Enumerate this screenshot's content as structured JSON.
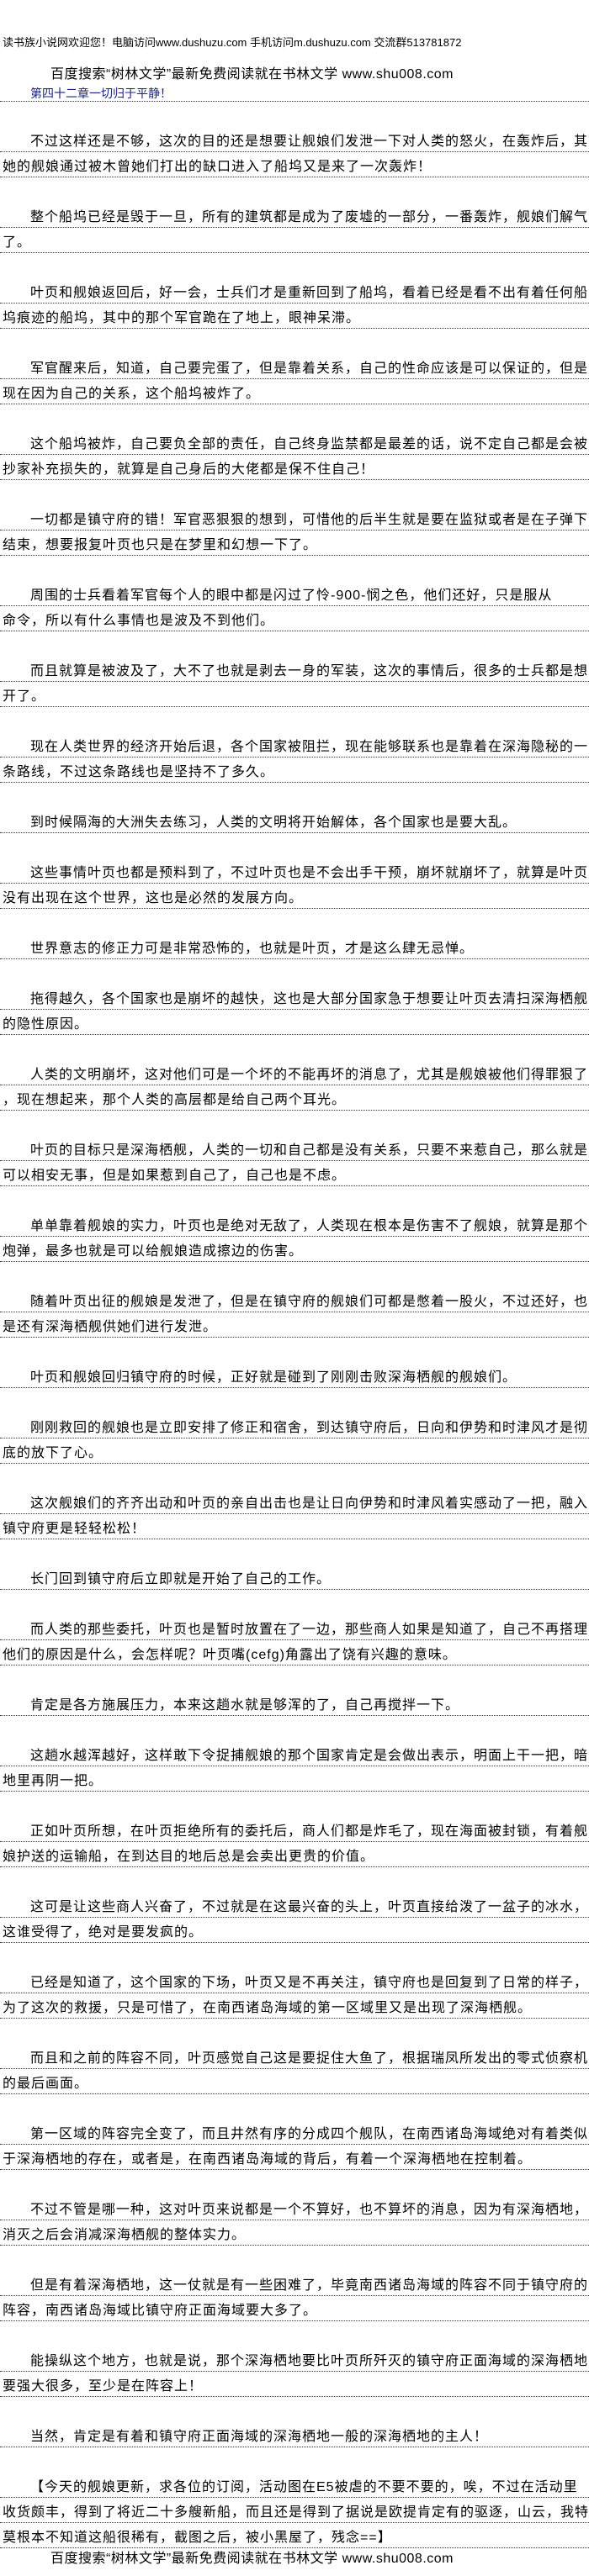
{
  "header": {
    "welcome": "读书族小说网欢迎您！电脑访问www.dushuzu.com 手机访问m.dushuzu.com 交流群513781872",
    "baidu": "百度搜索“树林文学”最新免费阅读就在书林文学 www.shu008.com"
  },
  "chapter_title": "第四十二章一切归于平静！",
  "paragraphs": [
    [
      "不过这样还是不够，这次的目的还是想要让舰娘们发泄一下对人类的怒火，在轰炸后，其",
      "她的舰娘通过被木曾她们打出的缺口进入了船坞又是来了一次轰炸！"
    ],
    [
      "整个船坞已经是毁于一旦，所有的建筑都是成为了废墟的一部分，一番轰炸，舰娘们解气",
      "了。"
    ],
    [
      "叶页和舰娘返回后，好一会，士兵们才是重新回到了船坞，看着已经是看不出有着任何船",
      "坞痕迹的船坞，其中的那个军官跪在了地上，眼神呆滞。"
    ],
    [
      "军官醒来后，知道，自己要完蛋了，但是靠着关系，自己的性命应该是可以保证的，但是",
      "现在因为自己的关系，这个船坞被炸了。"
    ],
    [
      "这个船坞被炸，自己要负全部的责任，自己终身监禁都是最差的话，说不定自己都是会被",
      "抄家补充损失的，就算是自己身后的大佬都是保不住自己！"
    ],
    [
      "一切都是镇守府的错！军官恶狠狠的想到，可惜他的后半生就是要在监狱或者是在子弹下",
      "结束，想要报复叶页也只是在梦里和幻想一下了。"
    ],
    [
      "周围的士兵看着军官每个人的眼中都是闪过了怜-900-悯之色，他们还好，只是服从",
      "命令，所以有什么事情也是波及不到他们。"
    ],
    [
      "而且就算是被波及了，大不了也就是剥去一身的军装，这次的事情后，很多的士兵都是想",
      "开了。"
    ],
    [
      "现在人类世界的经济开始后退，各个国家被阻拦，现在能够联系也是靠着在深海隐秘的一",
      "条路线，不过这条路线也是坚持不了多久。"
    ],
    [
      "到时候隔海的大洲失去练习，人类的文明将开始解体，各个国家也是要大乱。"
    ],
    [
      "这些事情叶页也都是预料到了，不过叶页也是不会出手干预，崩坏就崩坏了，就算是叶页",
      "没有出现在这个世界，这也是必然的发展方向。"
    ],
    [
      "世界意志的修正力可是非常恐怖的，也就是叶页，才是这么肆无忌惮。"
    ],
    [
      "拖得越久，各个国家也是崩坏的越快，这也是大部分国家急于想要让叶页去清扫深海栖舰",
      "的隐性原因。"
    ],
    [
      "人类的文明崩坏，这对他们可是一个坏的不能再坏的消息了，尤其是舰娘被他们得罪狠了",
      "，现在想起来，那个人类的高层都是给自己两个耳光。"
    ],
    [
      "叶页的目标只是深海栖舰，人类的一切和自己都是没有关系，只要不来惹自己，那么就是",
      "可以相安无事，但是如果惹到自己了，自己也是不虑。"
    ],
    [
      "单单靠着舰娘的实力，叶页也是绝对无敌了，人类现在根本是伤害不了舰娘，就算是那个",
      "炮弹，最多也就是可以给舰娘造成擦边的伤害。"
    ],
    [
      "随着叶页出征的舰娘是发泄了，但是在镇守府的舰娘们可都是憋着一股火，不过还好，也",
      "是还有深海栖舰供她们进行发泄。"
    ],
    [
      "叶页和舰娘回归镇守府的时候，正好就是碰到了刚刚击败深海栖舰的舰娘们。"
    ],
    [
      "刚刚救回的舰娘也是立即安排了修正和宿舍，到达镇守府后，日向和伊势和时津风才是彻",
      "底的放下了心。"
    ],
    [
      "这次舰娘们的齐齐出动和叶页的亲自出击也是让日向伊势和时津风着实感动了一把，融入",
      "镇守府更是轻轻松松！"
    ],
    [
      "长门回到镇守府后立即就是开始了自己的工作。"
    ],
    [
      "而人类的那些委托，叶页也是暂时放置在了一边，那些商人如果是知道了，自己不再搭理",
      "他们的原因是什么，会怎样呢？叶页嘴(cefg)角露出了饶有兴趣的意味。"
    ],
    [
      "肯定是各方施展压力，本来这趟水就是够浑的了，自己再搅拌一下。"
    ],
    [
      "这趟水越浑越好，这样敢下令捉捕舰娘的那个国家肯定是会做出表示，明面上干一把，暗",
      "地里再阴一把。"
    ],
    [
      "正如叶页所想，在叶页拒绝所有的委托后，商人们都是炸毛了，现在海面被封锁，有着舰",
      "娘护送的运输船，在到达目的地后总是会卖出更贵的价值。"
    ],
    [
      "这可是让这些商人兴奋了，不过就是在这最兴奋的头上，叶页直接给泼了一盆子的冰水，",
      "这谁受得了，绝对是要发疯的。"
    ],
    [
      "已经是知道了，这个国家的下场，叶页又是不再关注，镇守府也是回复到了日常的样子，",
      "为了这次的救援，只是可惜了，在南西诸岛海域的第一区域里又是出现了深海栖舰。"
    ],
    [
      "而且和之前的阵容不同，叶页感觉自己这是要捉住大鱼了，根据瑞凤所发出的零式侦察机",
      "的最后画面。"
    ],
    [
      "第一区域的阵容完全变了，而且井然有序的分成四个舰队，在南西诸岛海域绝对有着类似",
      "于深海栖地的存在，或者是，在南西诸岛海域的背后，有着一个深海栖地在控制着。"
    ],
    [
      "不过不管是哪一种，这对叶页来说都是一个不算好，也不算坏的消息，因为有深海栖地，",
      "消灭之后会消减深海栖舰的整体实力。"
    ],
    [
      "但是有着深海栖地，这一仗就是有一些困难了，毕竟南西诸岛海域的阵容不同于镇守府的",
      "阵容，南西诸岛海域比镇守府正面海域要大多了。"
    ],
    [
      "能操纵这个地方，也就是说，那个深海栖地要比叶页所歼灭的镇守府正面海域的深海栖地",
      "要强大很多，至少是在阵容上！"
    ],
    [
      "当然，肯定是有着和镇守府正面海域的深海栖地一般的深海栖地的主人！"
    ],
    [
      "【今天的舰娘更新，求各位的订阅，活动图在E5被虐的不要不要的，唉，不过在活动里",
      "收货颇丰，得到了将近二十多艘新船，而且还是得到了据说是欧提肯定有的驱逐，山云，我特",
      "莫根本不知道这船很稀有，截图之后，被小黑屋了，残念==】"
    ]
  ],
  "footer": {
    "baidu": "百度搜索“树林文学”最新免费阅读就在书林文学 www.shu008.com"
  }
}
